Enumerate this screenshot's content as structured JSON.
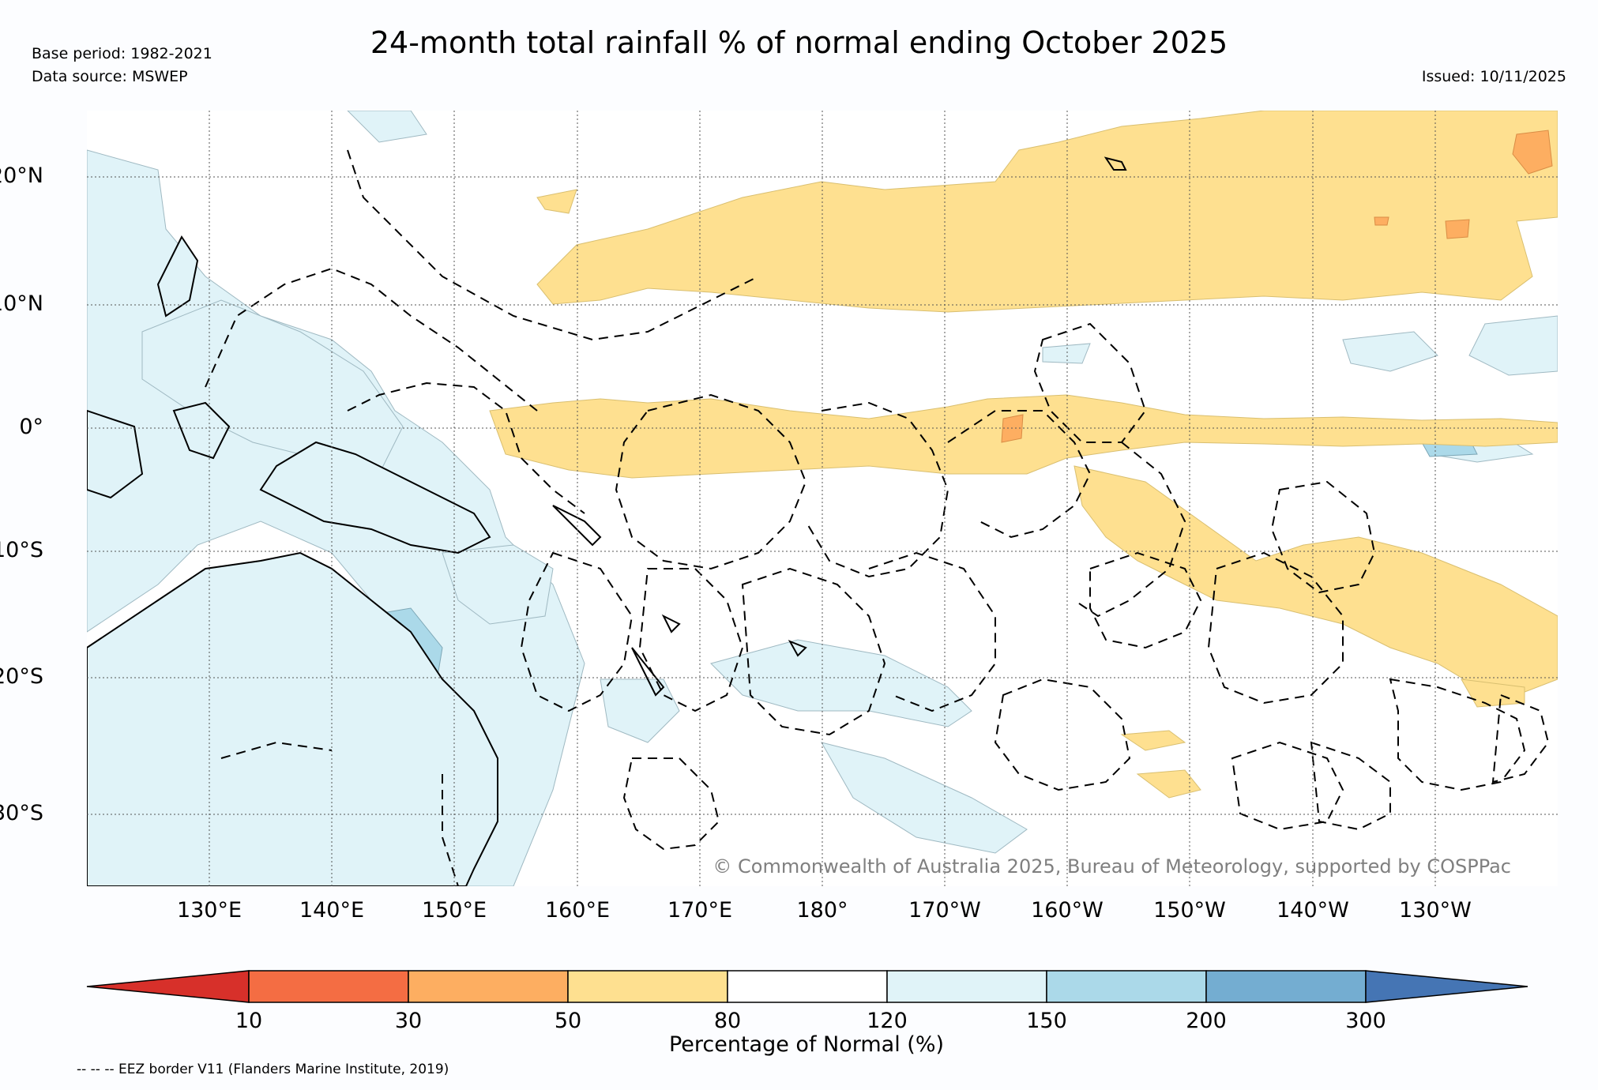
{
  "title": "24-month total rainfall % of normal ending October 2025",
  "meta": {
    "base_period": "Base period: 1982-2021",
    "data_source": "Data source: MSWEP",
    "issued": "Issued: 10/11/2025"
  },
  "map": {
    "lat_labels": [
      "20°N",
      "10°N",
      "0°",
      "10°S",
      "20°S",
      "30°S"
    ],
    "lon_labels": [
      "130°E",
      "140°E",
      "150°E",
      "160°E",
      "170°E",
      "180°",
      "170°W",
      "160°W",
      "150°W",
      "140°W",
      "130°W"
    ],
    "copyright": "© Commonwealth of Australia 2025, Bureau of Meteorology, supported by COSPPac"
  },
  "legend": {
    "ticks": [
      "10",
      "30",
      "50",
      "80",
      "120",
      "150",
      "200",
      "300"
    ],
    "colors": [
      "#d7302a",
      "#f46d43",
      "#fdae61",
      "#fee090",
      "#ffffff",
      "#e0f3f8",
      "#abd9e9",
      "#74add1",
      "#4575b4"
    ],
    "label": "Percentage of Normal (%)"
  },
  "footnote": "-- -- -- EEZ border V11 (Flanders Marine Institute, 2019)"
}
